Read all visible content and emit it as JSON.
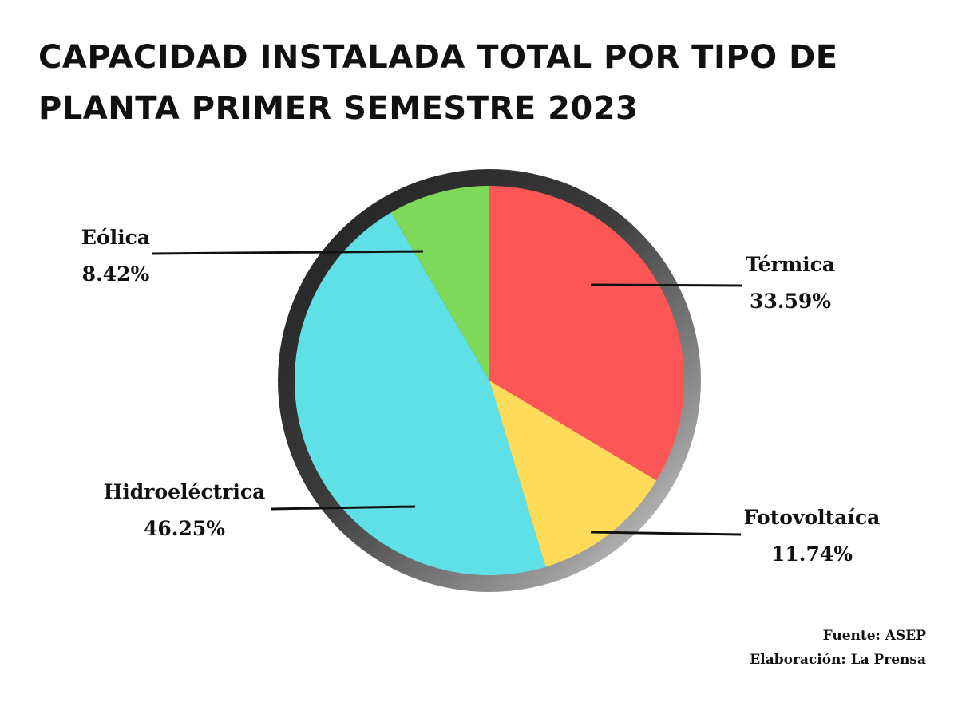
{
  "chart_data": {
    "type": "pie",
    "title": "CAPACIDAD INSTALADA TOTAL POR TIPO DE PLANTA PRIMER SEMESTRE 2023",
    "slices": [
      {
        "label": "Térmica",
        "value": 33.59,
        "display": "33.59%",
        "color": "#fc5656"
      },
      {
        "label": "Fotovoltaíca",
        "value": 11.74,
        "display": "11.74%",
        "color": "#fedc5a"
      },
      {
        "label": "Hidroeléctrica",
        "value": 46.25,
        "display": "46.25%",
        "color": "#5ee0e6"
      },
      {
        "label": "Eólica",
        "value": 8.42,
        "display": "8.42%",
        "color": "#7ed85a"
      }
    ],
    "start": "top",
    "direction": "clockwise"
  },
  "footer": {
    "source": "Fuente: ASEP",
    "credit": "Elaboración: La Prensa"
  }
}
